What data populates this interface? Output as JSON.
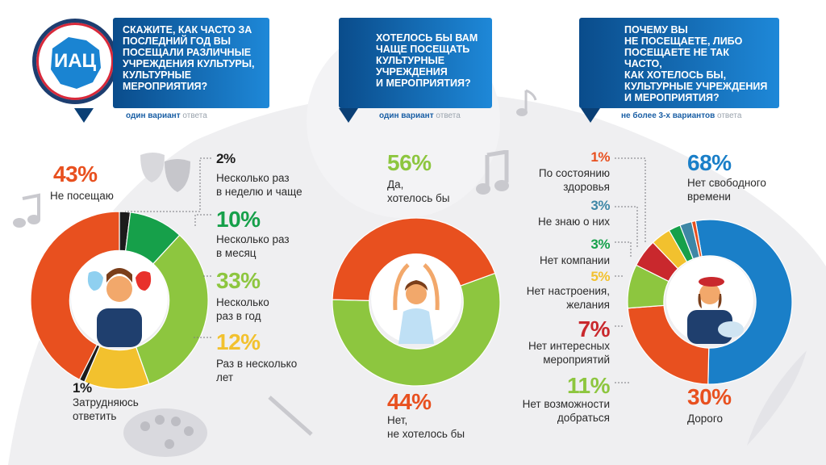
{
  "colors": {
    "orange": "#e8501f",
    "dark": "#1c1c1c",
    "green": "#16a04a",
    "lime": "#8dc63f",
    "yellow": "#f2c12e",
    "blue": "#1a7fc8",
    "navy": "#0b4d86",
    "teal": "#3e87a6",
    "red": "#c9282d"
  },
  "logo": {
    "text": "ИАЦ"
  },
  "icons": [
    "theater-masks-icon",
    "music-note-icon",
    "ballerina-icon",
    "painter-icon",
    "palette-icon",
    "paintbrush-icon",
    "feather-icon"
  ],
  "q1": {
    "question": "Скажите, как часто за\nпоследний год вы\nпосещали различные\nучреждения культуры,\nкультурные\nмероприятия?",
    "note_bold": "один вариант",
    "note_rest": " ответа",
    "items": [
      {
        "pct": "43%",
        "label": "Не посещаю",
        "value": 43,
        "color": "#e8501f"
      },
      {
        "pct": "2%",
        "label": "Несколько раз\nв неделю и чаще",
        "value": 2,
        "color": "#1c1c1c"
      },
      {
        "pct": "10%",
        "label": "Несколько раз\nв месяц",
        "value": 10,
        "color": "#16a04a"
      },
      {
        "pct": "33%",
        "label": "Несколько\nраз в год",
        "value": 33,
        "color": "#8dc63f"
      },
      {
        "pct": "12%",
        "label": "Раз в несколько\nлет",
        "value": 12,
        "color": "#f2c12e"
      },
      {
        "pct": "1%",
        "label": "Затрудняюсь\nответить",
        "value": 1,
        "color": "#1c1c1c"
      }
    ]
  },
  "q2": {
    "question": "Хотелось бы вам\nчаще посещать\nкультурные\nучреждения\nи мероприятия?",
    "note_bold": "один вариант",
    "note_rest": " ответа",
    "items": [
      {
        "pct": "56%",
        "label": "Да,\nхотелось бы",
        "value": 56,
        "color": "#8dc63f"
      },
      {
        "pct": "44%",
        "label": "Нет,\nне хотелось бы",
        "value": 44,
        "color": "#e8501f"
      }
    ]
  },
  "q3": {
    "question": "Почему вы\nне посещаете, либо\nпосещаете не так часто,\nкак хотелось бы,\nкультурные учреждения\nи мероприятия?",
    "note_bold": "не более 3-х вариантов",
    "note_rest": " ответа",
    "items": [
      {
        "pct": "68%",
        "label": "Нет свободного\nвремени",
        "value": 68,
        "color": "#1a7fc8"
      },
      {
        "pct": "30%",
        "label": "Дорого",
        "value": 30,
        "color": "#e8501f"
      },
      {
        "pct": "11%",
        "label": "Нет возможности\nдобраться",
        "value": 11,
        "color": "#8dc63f"
      },
      {
        "pct": "7%",
        "label": "Нет интересных\nмероприятий",
        "value": 7,
        "color": "#c9282d"
      },
      {
        "pct": "5%",
        "label": "Нет настроения,\nжелания",
        "value": 5,
        "color": "#f2c12e"
      },
      {
        "pct": "3%",
        "label": "Нет компании",
        "value": 3,
        "color": "#16a04a"
      },
      {
        "pct": "3%",
        "label": "Не знаю о них",
        "value": 3,
        "color": "#3e87a6"
      },
      {
        "pct": "1%",
        "label": "По состоянию\nздоровья",
        "value": 1,
        "color": "#e8501f"
      }
    ]
  }
}
